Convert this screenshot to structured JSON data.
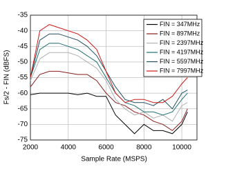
{
  "chart_data": {
    "type": "line",
    "x_label": "Sample Rate (MSPS)",
    "y_label": "Fs/2 - FIN (dBFS)",
    "x": [
      2000,
      2500,
      3000,
      3500,
      4000,
      4500,
      5000,
      5500,
      6000,
      6500,
      7000,
      7500,
      8000,
      8500,
      9000,
      9500,
      10000,
      10300
    ],
    "series": [
      {
        "name": "FIN = 347MHz",
        "color": "#000000",
        "values": [
          -60.5,
          -60,
          -60,
          -60,
          -60,
          -60.5,
          -60,
          -61,
          -61,
          -67,
          -70,
          -73,
          -70,
          -72,
          -72,
          -73,
          -70,
          -66
        ]
      },
      {
        "name": "FIN = 897MHz",
        "color": "#8b1a1a",
        "values": [
          -58,
          -54,
          -53,
          -53,
          -53.5,
          -54,
          -54,
          -56,
          -60,
          -63,
          -64,
          -66,
          -67,
          -69,
          -70,
          -72,
          -69,
          -65
        ]
      },
      {
        "name": "FIN = 2397MHz",
        "color": "#b0b0b0",
        "values": [
          -56,
          -49,
          -47,
          -47,
          -47,
          -48,
          -50,
          -52,
          -56,
          -62,
          -65,
          -67,
          -66,
          -68,
          -67,
          -69,
          -64,
          -63
        ]
      },
      {
        "name": "FIN = 4197MHz",
        "color": "#1f6f6f",
        "values": [
          -55,
          -46,
          -44,
          -44,
          -45,
          -46,
          -48,
          -50,
          -55,
          -60,
          -63,
          -64,
          -66,
          -66,
          -67,
          -66,
          -62,
          -60
        ]
      },
      {
        "name": "FIN = 5597MHz",
        "color": "#1e4e5e",
        "values": [
          -55,
          -43,
          -41,
          -41,
          -42,
          -43,
          -45,
          -48,
          -53,
          -58,
          -62,
          -63,
          -63,
          -64,
          -62,
          -65,
          -60,
          -59
        ]
      },
      {
        "name": "FIN = 7997MHz",
        "color": "#d01818",
        "values": [
          -55,
          -40,
          -38,
          -39,
          -40,
          -41,
          -43,
          -46,
          -53,
          -60,
          -63,
          -62,
          -62,
          -63,
          -63,
          -61,
          -57,
          -55
        ]
      }
    ],
    "xlim": [
      2000,
      10800
    ],
    "xticks": [
      2000,
      4000,
      6000,
      8000,
      10000
    ],
    "ylim": [
      -75,
      -35
    ],
    "yticks": [
      -35,
      -40,
      -45,
      -50,
      -55,
      -60,
      -65,
      -70,
      -75
    ],
    "grid": true
  }
}
